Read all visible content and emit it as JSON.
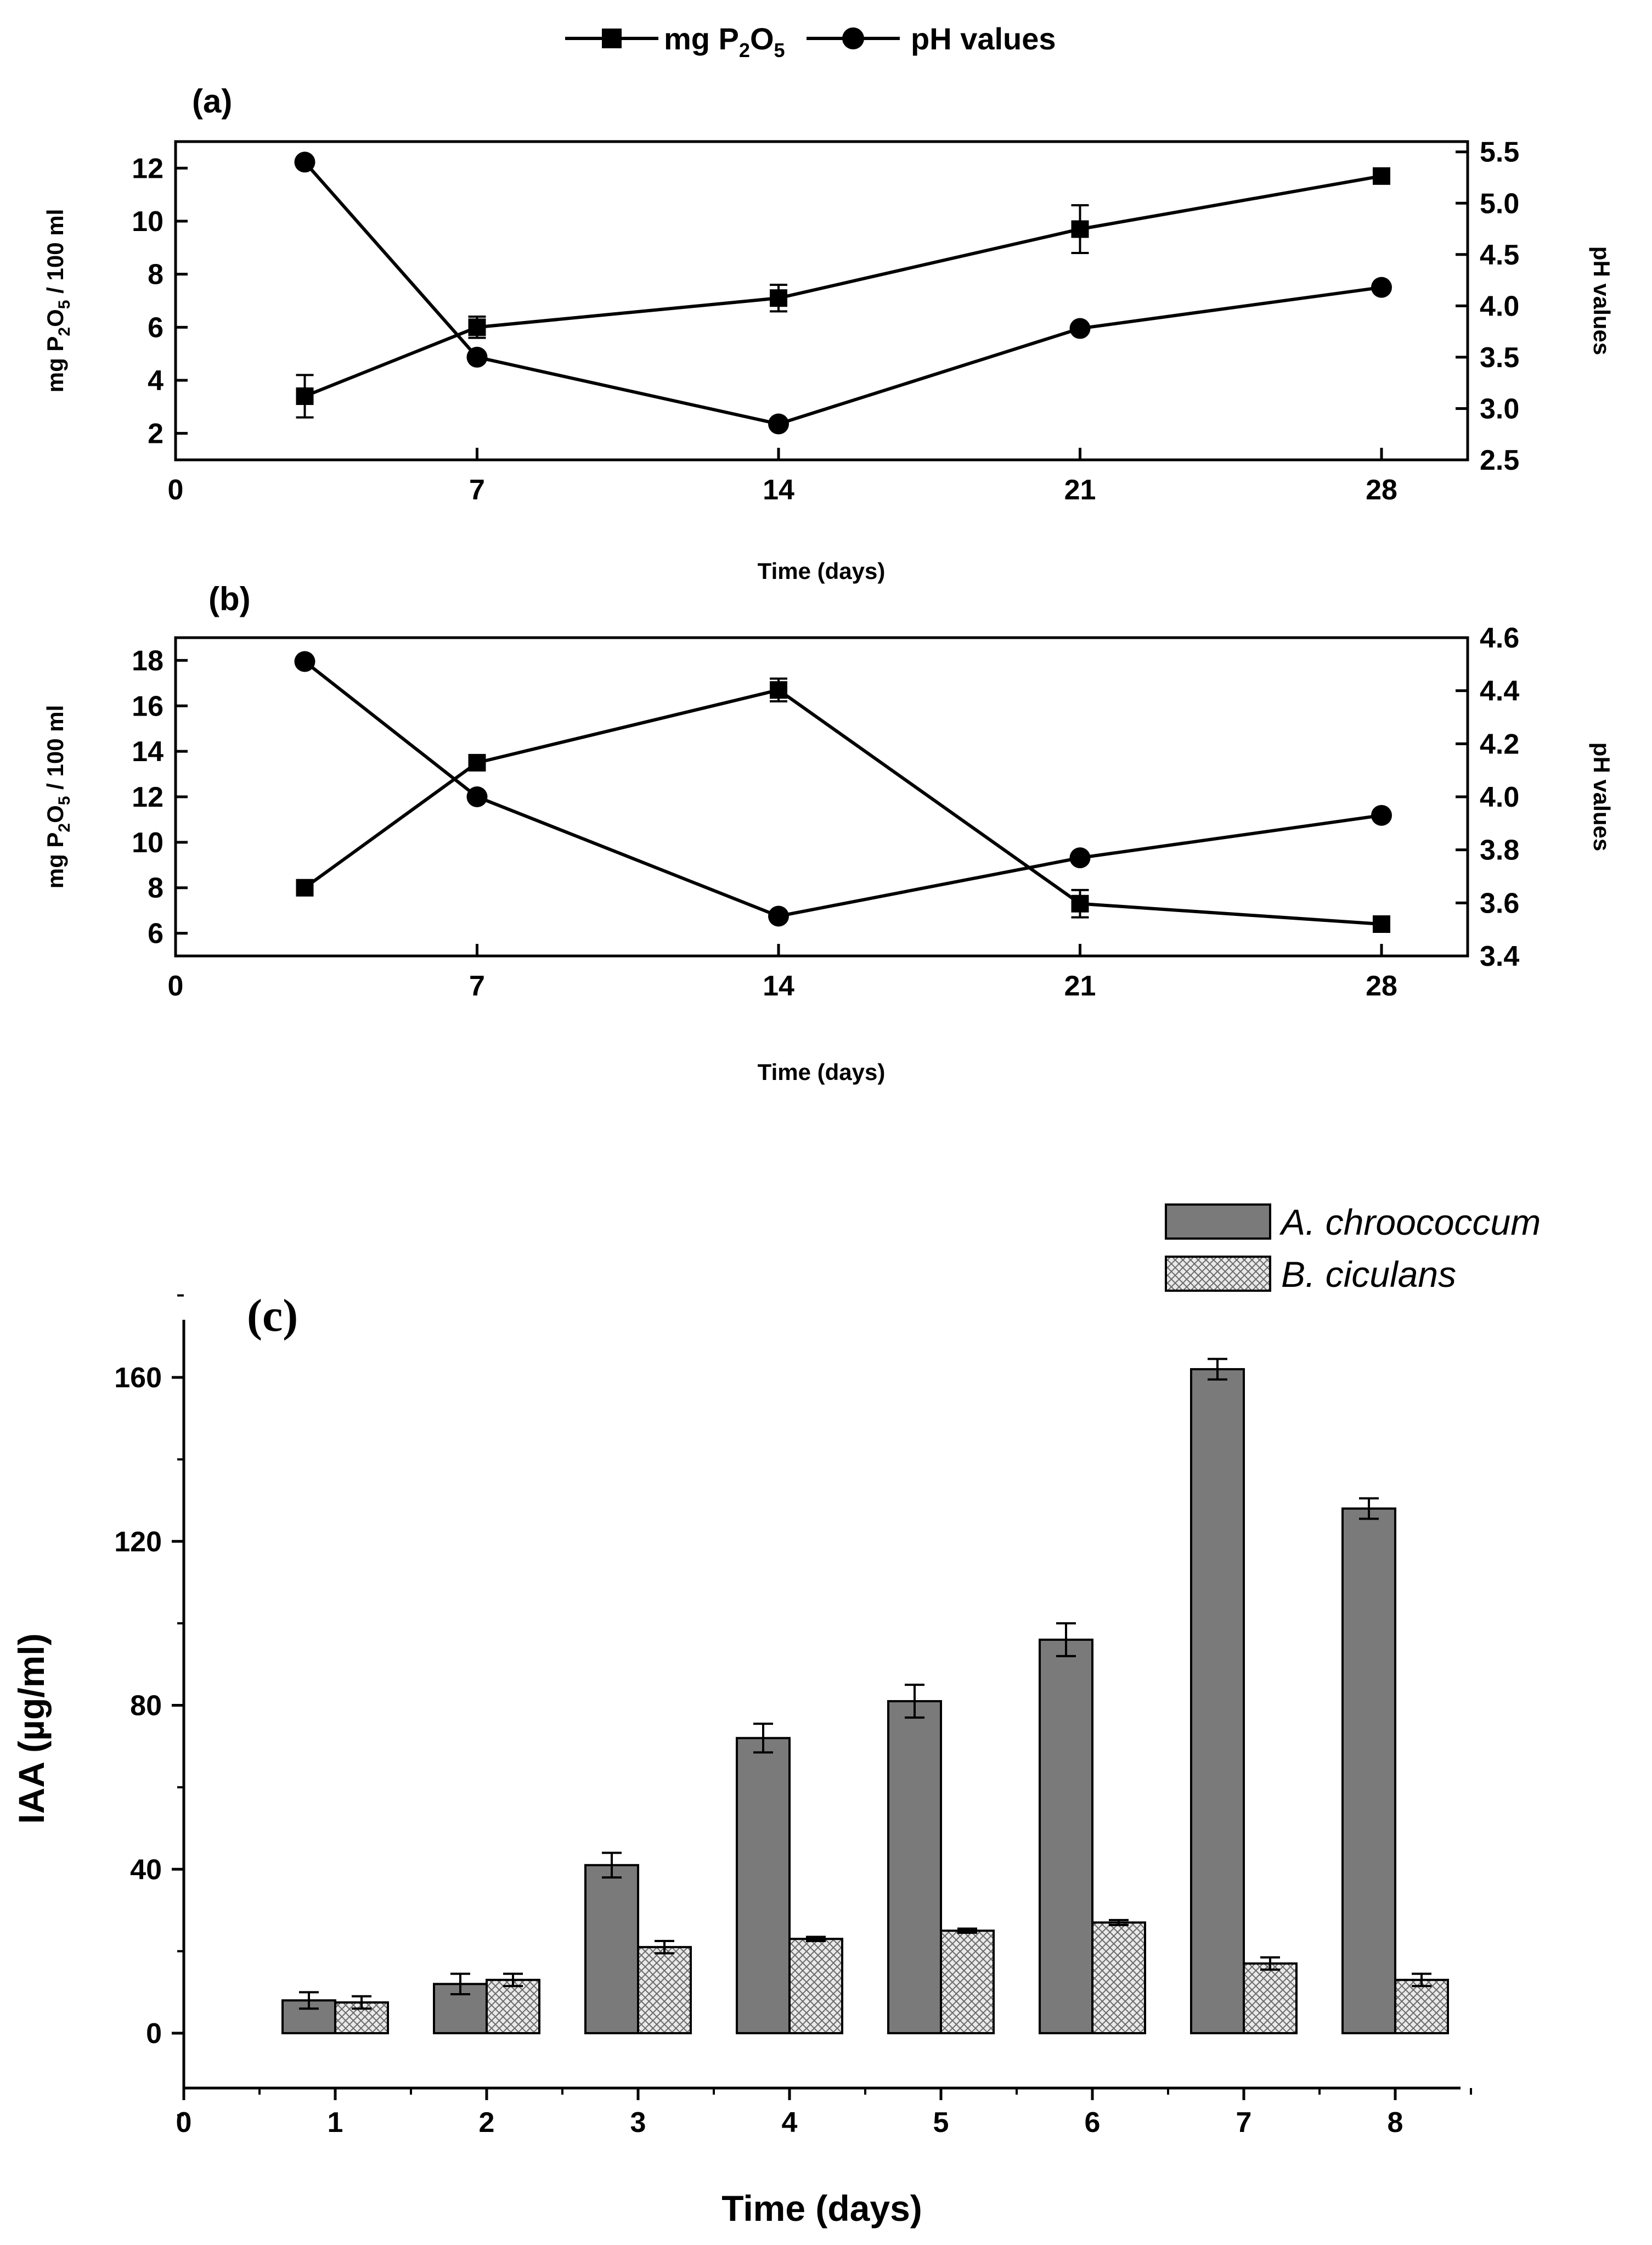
{
  "colors": {
    "axis": "#000000",
    "bar_dark": "#7a7a7a",
    "bar_hatch": "#e2e2e2",
    "background": "#ffffff"
  },
  "legend_top": {
    "series1": "mg P",
    "series1_sub1": "2",
    "series1_mid": "O",
    "series1_sub2": "5",
    "series2": "pH values"
  },
  "chart_data": [
    {
      "type": "line",
      "panel_label": "(a)",
      "xlabel": "Time (days)",
      "ylabel_left_prefix": "mg P",
      "ylabel_left_sub1": "2",
      "ylabel_left_mid": "O",
      "ylabel_left_sub2": "5",
      "ylabel_left_suffix": " / 100 ml",
      "ylabel_right": "pH values",
      "x_ticks": [
        0,
        7,
        14,
        21,
        28
      ],
      "xlim": [
        0,
        30
      ],
      "ylim_left": [
        1,
        13
      ],
      "yticks_left": [
        2,
        4,
        6,
        8,
        10,
        12
      ],
      "ylim_right": [
        2.5,
        5.6
      ],
      "yticks_right": [
        "2.5",
        "3.0",
        "3.5",
        "4.0",
        "4.5",
        "5.0",
        "5.5"
      ],
      "series": [
        {
          "name": "mg P2O5",
          "axis": "left",
          "marker": "square",
          "x": [
            3,
            7,
            14,
            21,
            28
          ],
          "values": [
            3.4,
            6.0,
            7.1,
            9.7,
            11.7
          ],
          "errors": [
            0.8,
            0.4,
            0.5,
            0.9,
            0.25
          ]
        },
        {
          "name": "pH values",
          "axis": "right",
          "marker": "circle",
          "x": [
            3,
            7,
            14,
            21,
            28
          ],
          "values": [
            5.4,
            3.5,
            2.85,
            3.78,
            4.18
          ]
        }
      ]
    },
    {
      "type": "line",
      "panel_label": "(b)",
      "xlabel": "Time (days)",
      "ylabel_left_prefix": "mg P",
      "ylabel_left_sub1": "2",
      "ylabel_left_mid": "O",
      "ylabel_left_sub2": "5",
      "ylabel_left_suffix": " / 100 ml",
      "ylabel_right": "pH values",
      "x_ticks": [
        0,
        7,
        14,
        21,
        28
      ],
      "xlim": [
        0,
        30
      ],
      "ylim_left": [
        5,
        19
      ],
      "yticks_left": [
        6,
        8,
        10,
        12,
        14,
        16,
        18
      ],
      "ylim_right": [
        3.4,
        4.6
      ],
      "yticks_right": [
        "3.4",
        "3.6",
        "3.8",
        "4.0",
        "4.2",
        "4.4",
        "4.6"
      ],
      "series": [
        {
          "name": "mg P2O5",
          "axis": "left",
          "marker": "square",
          "x": [
            3,
            7,
            14,
            21,
            28
          ],
          "values": [
            8.0,
            13.5,
            16.7,
            7.3,
            6.4
          ],
          "errors": [
            0.2,
            0.3,
            0.5,
            0.6,
            0.2
          ]
        },
        {
          "name": "pH values",
          "axis": "right",
          "marker": "circle",
          "x": [
            3,
            7,
            14,
            21,
            28
          ],
          "values": [
            4.51,
            4.0,
            3.55,
            3.77,
            3.93
          ]
        }
      ]
    },
    {
      "type": "bar",
      "panel_label": "(c)",
      "xlabel": "Time (days)",
      "ylabel": "IAA (µg/ml)",
      "x_ticks": [
        "0",
        "1",
        "2",
        "3",
        "4",
        "5",
        "6",
        "7",
        "8"
      ],
      "categories": [
        "1",
        "2",
        "3",
        "4",
        "5",
        "6",
        "7",
        "8"
      ],
      "xlim": [
        0,
        8.5
      ],
      "ylim": [
        -20,
        180
      ],
      "yticks": [
        0,
        40,
        80,
        120,
        160
      ],
      "series": [
        {
          "name": "A. chroococcum",
          "style": "solid",
          "values": [
            8,
            12,
            41,
            72,
            81,
            96,
            162,
            128
          ],
          "errors": [
            2,
            2.5,
            3,
            3.5,
            4,
            4,
            2.5,
            2.5
          ]
        },
        {
          "name": "B. ciculans",
          "style": "hatched",
          "values": [
            7.5,
            13,
            21,
            23,
            25,
            27,
            17,
            13
          ],
          "errors": [
            1.5,
            1.5,
            1.5,
            0.5,
            0.5,
            0.6,
            1.5,
            1.5
          ]
        }
      ]
    }
  ]
}
